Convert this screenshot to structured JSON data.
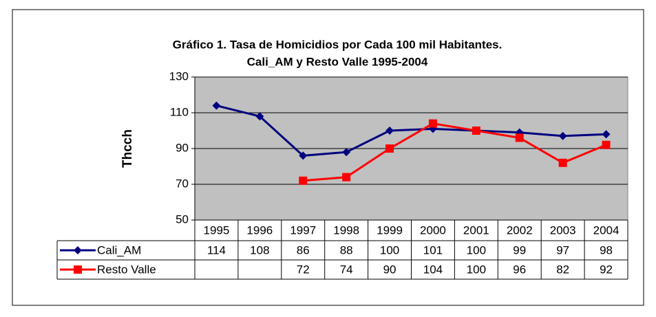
{
  "chart_data": {
    "type": "line",
    "title": [
      "Gráfico 1. Tasa de Homicidios por Cada 100 mil Habitantes.",
      "Cali_AM y Resto Valle 1995-2004"
    ],
    "y_label": "Thcch",
    "categories": [
      "1995",
      "1996",
      "1997",
      "1998",
      "1999",
      "2000",
      "2001",
      "2002",
      "2003",
      "2004"
    ],
    "series": [
      {
        "name": "Cali_AM",
        "color": "#000080",
        "marker": "diamond",
        "values": [
          114,
          108,
          86,
          88,
          100,
          101,
          100,
          99,
          97,
          98
        ]
      },
      {
        "name": "Resto Valle",
        "color": "#ff0000",
        "marker": "square",
        "values": [
          null,
          null,
          72,
          74,
          90,
          104,
          100,
          96,
          82,
          92
        ]
      }
    ],
    "ylim": [
      50,
      130
    ],
    "yticks": [
      50,
      70,
      90,
      110,
      130
    ],
    "grid": true,
    "plot_background": "#c0c0c0"
  }
}
